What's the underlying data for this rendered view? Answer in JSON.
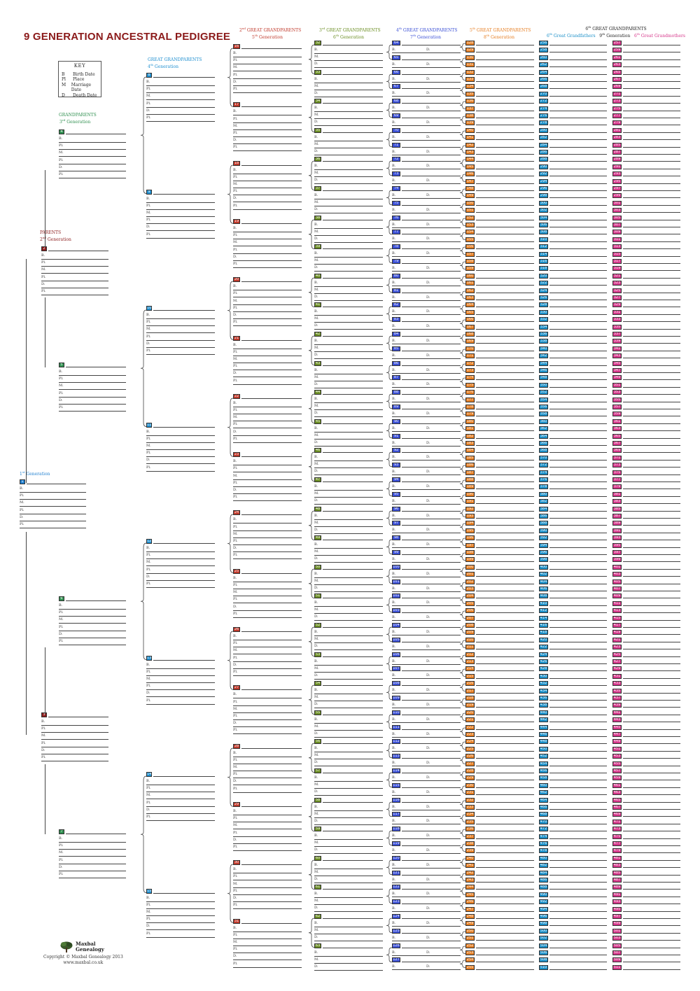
{
  "title": "9 GENERATION ANCESTRAL PEDIGREE",
  "key": {
    "title": "KEY",
    "items": [
      {
        "abbr": "B",
        "meaning": "Birth Date"
      },
      {
        "abbr": "Pl",
        "meaning": "Place"
      },
      {
        "abbr": "M",
        "meaning": "Marriage Date"
      },
      {
        "abbr": "D",
        "meaning": "Death Date"
      }
    ]
  },
  "generations": {
    "g1": {
      "ord": "1",
      "ordSup": "st",
      "gen": " Generation",
      "color": "#2a7fd4"
    },
    "g2": {
      "title": "PARENTS",
      "ord": "2",
      "ordSup": "nd",
      "gen": " Generation",
      "color": "#8b1a1a"
    },
    "g3": {
      "title": "GRANDPARENTS",
      "ord": "3",
      "ordSup": "rd",
      "gen": " Generation",
      "color": "#2f8f4f"
    },
    "g4": {
      "title": "GREAT GRANDPARENTS",
      "ord": "4",
      "ordSup": "th",
      "gen": " Generation",
      "color": "#1f8fd0"
    },
    "g5": {
      "prefix": "2",
      "prefixSup": "nd",
      "title": " GREAT GRANDPARENTS",
      "ord": "5",
      "ordSup": "th",
      "gen": " Generation",
      "color": "#c0392b"
    },
    "g6": {
      "prefix": "3",
      "prefixSup": "rd",
      "title": " GREAT GRANDPARENTS",
      "ord": "6",
      "ordSup": "th",
      "gen": " Generation",
      "color": "#6b8e23"
    },
    "g7": {
      "prefix": "4",
      "prefixSup": "th",
      "title": " GREAT GRANDPARENTS",
      "ord": "7",
      "ordSup": "th",
      "gen": " Generation",
      "color": "#3a4fd6"
    },
    "g8": {
      "prefix": "5",
      "prefixSup": "th",
      "title": " GREAT GRANDPARENTS",
      "ord": "8",
      "ordSup": "th",
      "gen": " Generation",
      "color": "#e67e22"
    },
    "g9": {
      "prefix": "6",
      "prefixSup": "th",
      "title": " GREAT GRANDPARENTS",
      "ord": "9",
      "ordSup": "th",
      "gen": " Generation",
      "father": "Great Grandfathers",
      "mother": "Great Grandmothers",
      "fatherPrefix": "6",
      "fatherPrefixSup": "th",
      "motherPrefix": "6",
      "motherPrefixSup": "th",
      "colorFather": "#1a8fc8",
      "colorMother": "#d6368a"
    }
  },
  "colors": {
    "g1": "#1f7fd0",
    "g2": "#8b1a1a",
    "g3": "#2f8f4f",
    "g4": "#1f8fd0",
    "g5": "#c0392b",
    "g6": "#6b8e23",
    "g7": "#3a4fd6",
    "g8": "#e67e22",
    "g9f": "#1a8fc8",
    "g9m": "#d6368a"
  },
  "fields": {
    "full": [
      "B.",
      "Pl.",
      "M.",
      "Pl.",
      "D.",
      "Pl."
    ],
    "short": [
      "B.",
      "M.",
      "D."
    ],
    "bd": [
      "B.",
      "D."
    ]
  },
  "logo": {
    "line1": "Maxbal",
    "line2": "Genealogy"
  },
  "copyright": {
    "line1": "Copyright © Maxbal Genealogy 2013",
    "line2": "www.maxbal.co.uk"
  }
}
